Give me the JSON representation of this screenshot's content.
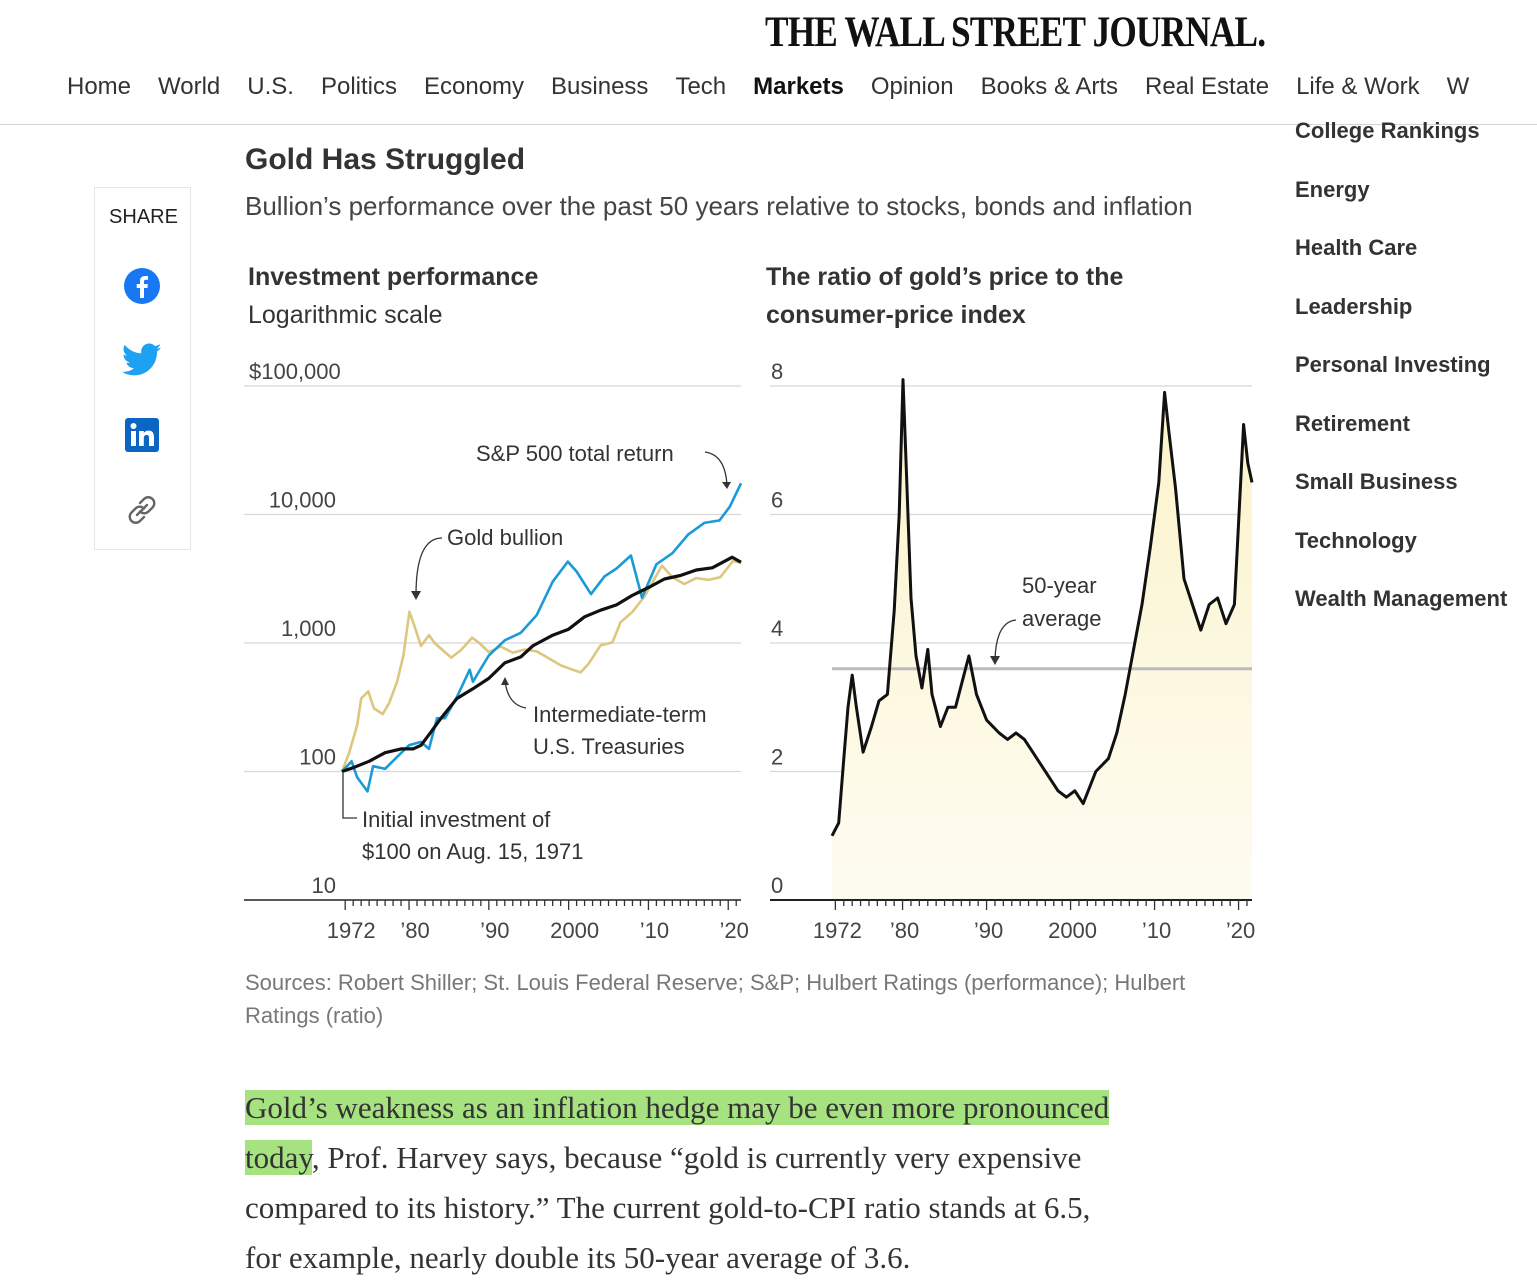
{
  "masthead": {
    "logo": "THE WALL STREET JOURNAL.",
    "nav": [
      "Home",
      "World",
      "U.S.",
      "Politics",
      "Economy",
      "Business",
      "Tech",
      "Markets",
      "Opinion",
      "Books & Arts",
      "Real Estate",
      "Life & Work",
      "W"
    ],
    "active": "Markets"
  },
  "share": {
    "label": "SHARE",
    "icons": [
      "facebook-icon",
      "twitter-icon",
      "linkedin-icon",
      "link-icon"
    ]
  },
  "sidebar": {
    "items": [
      "College Rankings",
      "Energy",
      "Health Care",
      "Leadership",
      "Personal Investing",
      "Retirement",
      "Small Business",
      "Technology",
      "Wealth Management"
    ]
  },
  "graphic": {
    "title": "Gold Has Struggled",
    "subtitle": "Bullion’s performance over the past 50 years relative to stocks, bonds and inflation",
    "sources": "Sources: Robert Shiller; St. Louis Federal Reserve; S&P; Hulbert Ratings (performance); Hulbert Ratings (ratio)"
  },
  "colors": {
    "gold": "#dcc77e",
    "sp500": "#1a9bd7",
    "treasuries": "#111111",
    "fill": "#fbf3c9",
    "avgline": "#bbbbbb"
  },
  "chart_data": [
    {
      "type": "line",
      "title": "Investment performance",
      "subtitle": "Logarithmic scale",
      "y_scale": "log",
      "ylim": [
        10,
        100000
      ],
      "y_ticks": [
        100000,
        10000,
        1000,
        100,
        10
      ],
      "y_tick_labels": [
        "$100,000",
        "10,000",
        "1,000",
        "100",
        "10"
      ],
      "x_tick_labels": [
        "1972",
        "’80",
        "’90",
        "2000",
        "’10",
        "’20"
      ],
      "x_tick_values": [
        1972,
        1980,
        1990,
        2000,
        2010,
        2020
      ],
      "xlim": [
        1971.6,
        2021.6
      ],
      "series": [
        {
          "name": "Gold bullion",
          "label": "Gold bullion",
          "color": "#dcc77e",
          "x": [
            1971.6,
            1972.5,
            1973.5,
            1974,
            1974.9,
            1975.6,
            1976.7,
            1977.5,
            1978.5,
            1979.3,
            1980.05,
            1980.6,
            1981.5,
            1982.5,
            1983.2,
            1984.5,
            1985.3,
            1986.5,
            1987.9,
            1988.8,
            1990,
            1991.5,
            1993,
            1994.5,
            1996,
            1997.5,
            1999,
            2000.5,
            2001.5,
            2002.5,
            2004,
            2005.5,
            2006.5,
            2008,
            2009.5,
            2011.7,
            2013,
            2014.5,
            2016,
            2017.5,
            2019,
            2020.6,
            2021.6
          ],
          "y": [
            100,
            140,
            230,
            370,
            420,
            310,
            280,
            340,
            500,
            800,
            1750,
            1400,
            950,
            1150,
            1000,
            850,
            770,
            880,
            1100,
            1000,
            850,
            940,
            840,
            890,
            860,
            760,
            670,
            620,
            590,
            690,
            960,
            1010,
            1450,
            1750,
            2300,
            4000,
            3250,
            2880,
            3200,
            3100,
            3250,
            4350,
            4200
          ]
        },
        {
          "name": "S&P 500 total return",
          "label": "S&P 500 total return",
          "color": "#1a9bd7",
          "x": [
            1971.6,
            1972.8,
            1973.5,
            1974.8,
            1975.5,
            1977,
            1978.5,
            1980,
            1981.5,
            1982.5,
            1983.5,
            1984.5,
            1986,
            1987.6,
            1988,
            1990,
            1992,
            1994,
            1996,
            1998,
            1999.9,
            2001,
            2002.8,
            2004.5,
            2006,
            2007.8,
            2009.2,
            2011,
            2013,
            2015,
            2017,
            2018.9,
            2020.2,
            2021.6
          ],
          "y": [
            100,
            120,
            90,
            70,
            110,
            105,
            130,
            160,
            170,
            150,
            260,
            260,
            380,
            620,
            500,
            800,
            1050,
            1200,
            1650,
            3000,
            4300,
            3600,
            2400,
            3300,
            3800,
            4800,
            2250,
            4100,
            5000,
            7000,
            8600,
            9000,
            11500,
            17500
          ]
        },
        {
          "name": "Intermediate-term U.S. Treasuries",
          "label": "Intermediate-term\nU.S. Treasuries",
          "color": "#111111",
          "x": [
            1971.6,
            1973,
            1975,
            1977,
            1979,
            1980.5,
            1981.5,
            1982.8,
            1984,
            1986,
            1988,
            1990,
            1992,
            1994,
            1995.5,
            1998,
            2000,
            2002,
            2004,
            2006,
            2008,
            2010,
            2012,
            2014,
            2016,
            2018,
            2020.5,
            2021.6
          ],
          "y": [
            100,
            107,
            120,
            140,
            150,
            150,
            160,
            205,
            260,
            370,
            440,
            530,
            700,
            780,
            950,
            1150,
            1280,
            1600,
            1800,
            1980,
            2350,
            2700,
            3150,
            3350,
            3700,
            3850,
            4650,
            4250
          ]
        }
      ],
      "annotations": [
        {
          "text": "Initial investment of\n$100 on Aug. 15, 1971"
        }
      ]
    },
    {
      "type": "area",
      "title": "The ratio of gold’s price to the consumer-price index",
      "ylim": [
        0,
        8
      ],
      "y_ticks": [
        8,
        6,
        4,
        2,
        0
      ],
      "y_tick_labels": [
        "8",
        "6",
        "4",
        "2",
        "0"
      ],
      "x_tick_labels": [
        "1972",
        "’80",
        "’90",
        "2000",
        "’10",
        "’20"
      ],
      "x_tick_values": [
        1972,
        1980,
        1990,
        2000,
        2010,
        2020
      ],
      "xlim": [
        1971.6,
        2021.6
      ],
      "average": {
        "value": 3.6,
        "label": "50-year\naverage"
      },
      "series": [
        {
          "name": "Gold-to-CPI ratio",
          "color": "#111111",
          "fill": "#fbf3c9",
          "x": [
            1971.6,
            1972.4,
            1973,
            1973.5,
            1974,
            1974.5,
            1975.3,
            1976.3,
            1977.2,
            1978.2,
            1979,
            1979.6,
            1980.05,
            1980.5,
            1981,
            1981.6,
            1982.3,
            1983,
            1983.5,
            1984.5,
            1985.4,
            1986.3,
            1987.9,
            1988.8,
            1990,
            1991.5,
            1992.5,
            1993.5,
            1994.5,
            1995.5,
            1996.5,
            1997.5,
            1998.5,
            1999.5,
            2000.5,
            2001.5,
            2003,
            2004.5,
            2005.5,
            2006.5,
            2007.5,
            2008.5,
            2009.5,
            2010.5,
            2011.2,
            2011.7,
            2012.5,
            2013.5,
            2014.5,
            2015.5,
            2016.5,
            2017.5,
            2018.5,
            2019.5,
            2020.6,
            2021.1,
            2021.6
          ],
          "y": [
            1.0,
            1.2,
            2.2,
            3.0,
            3.5,
            3.0,
            2.3,
            2.7,
            3.1,
            3.2,
            4.5,
            6.0,
            8.1,
            6.5,
            4.7,
            3.8,
            3.3,
            3.9,
            3.2,
            2.7,
            3.0,
            3.0,
            3.8,
            3.2,
            2.8,
            2.6,
            2.5,
            2.6,
            2.5,
            2.3,
            2.1,
            1.9,
            1.7,
            1.6,
            1.7,
            1.5,
            2.0,
            2.2,
            2.6,
            3.2,
            3.9,
            4.6,
            5.5,
            6.5,
            7.9,
            7.3,
            6.4,
            5.0,
            4.6,
            4.2,
            4.6,
            4.7,
            4.3,
            4.6,
            7.4,
            6.8,
            6.5
          ]
        }
      ]
    }
  ],
  "article": {
    "highlight_line1": "Gold’s weakness as an inflation hedge may be even more pronounced",
    "highlight_line2": "today",
    "rest_line2": ", Prof. Harvey says, because “gold is currently very expensive",
    "line3": "compared to its history.” The current gold-to-CPI ratio stands at 6.5,",
    "line4": "for example, nearly double its 50-year average of 3.6."
  }
}
